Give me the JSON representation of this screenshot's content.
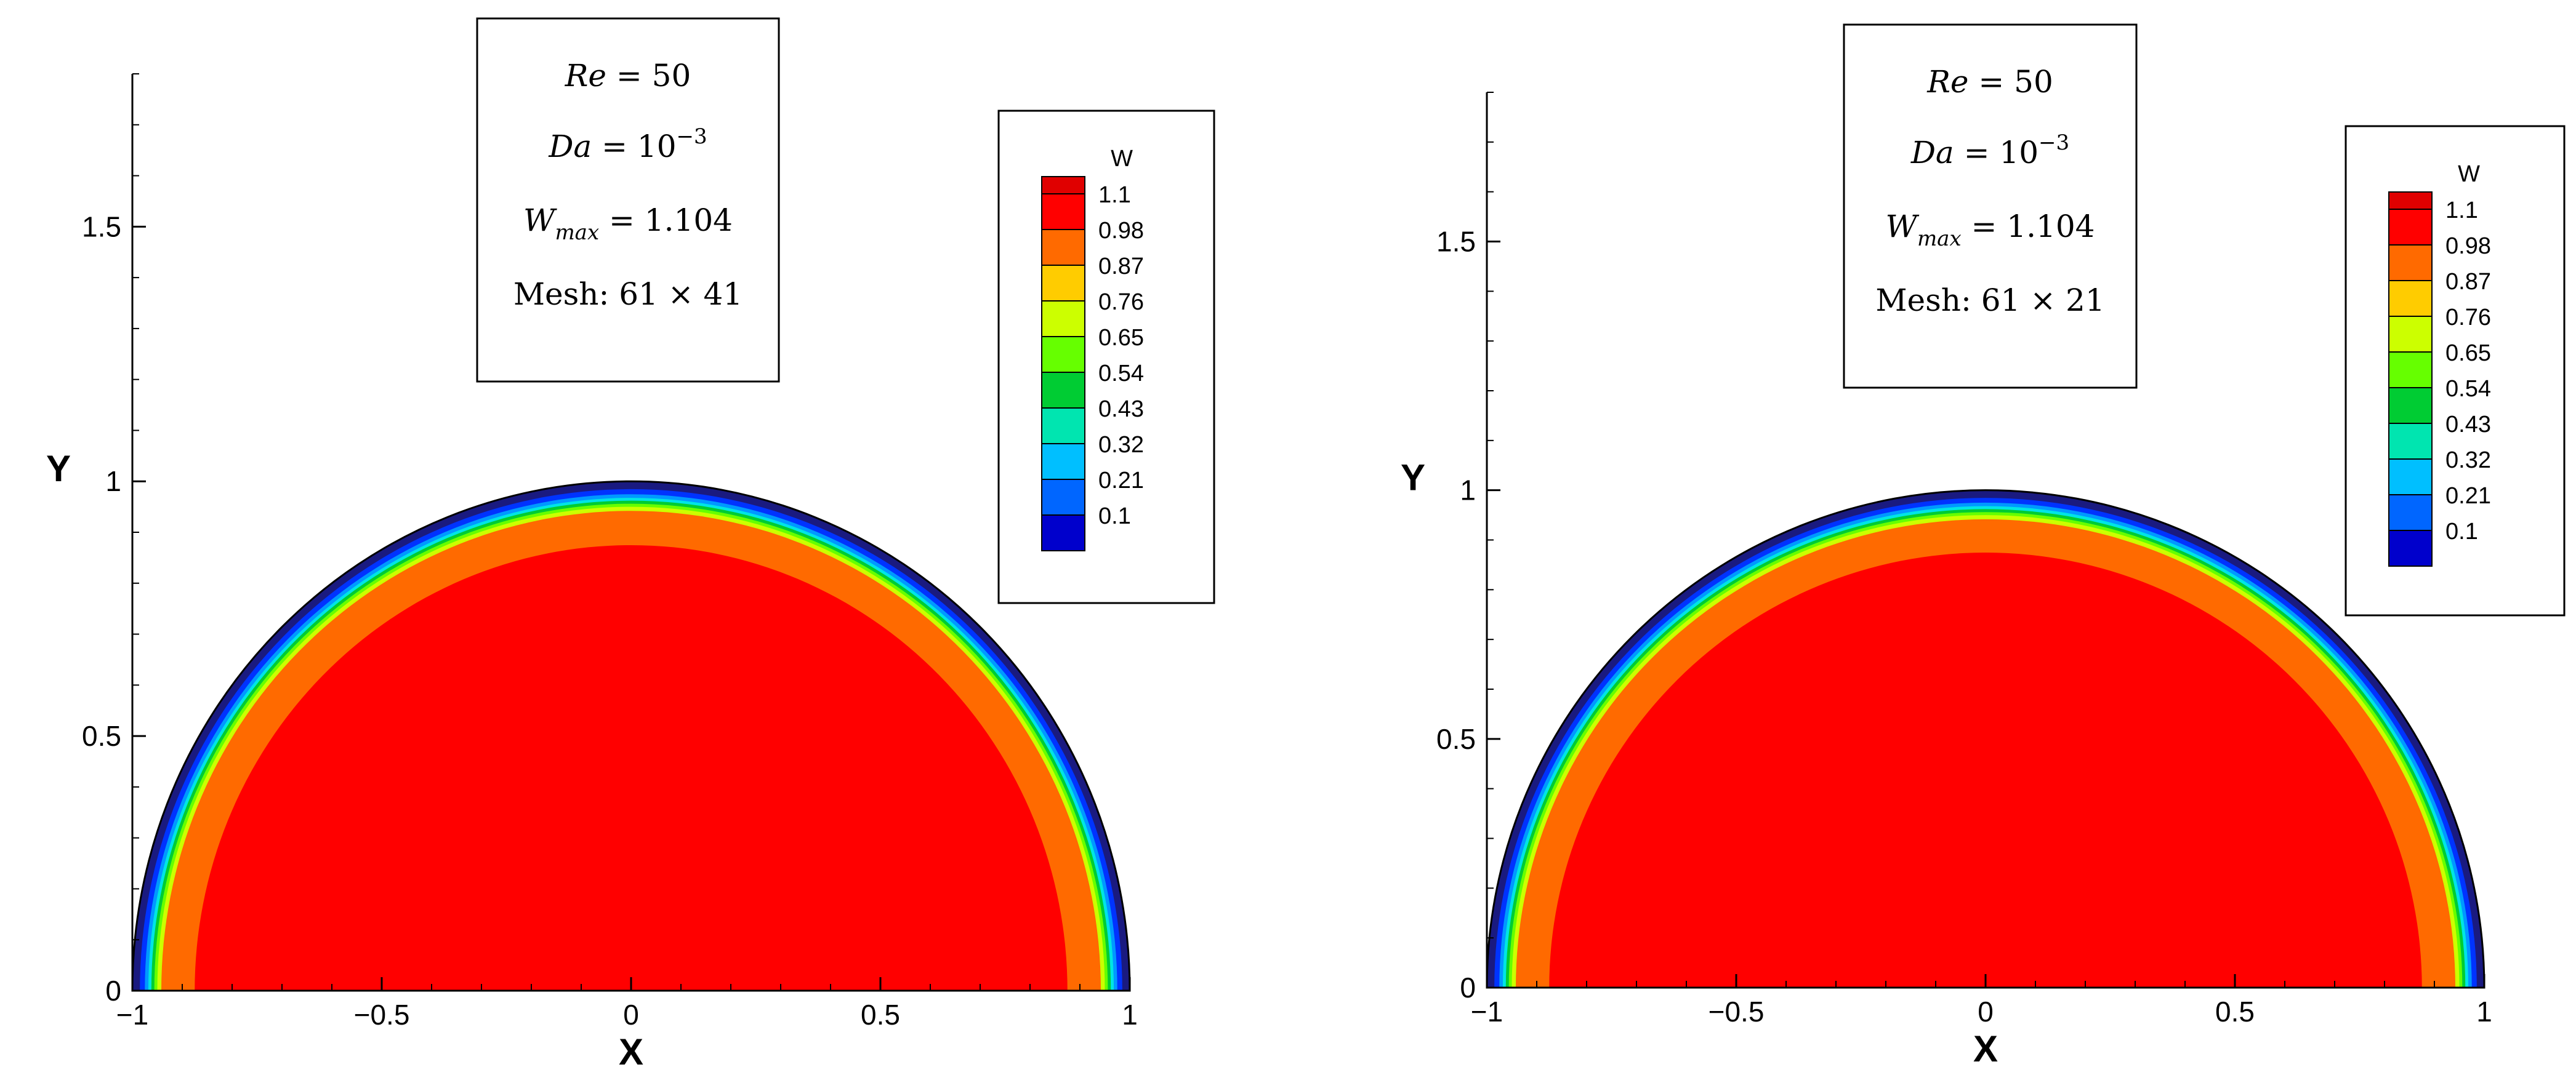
{
  "chart_data": [
    {
      "type": "heatmap",
      "xlabel": "X",
      "ylabel": "Y",
      "xlim": [
        -1,
        1
      ],
      "ylim": [
        0,
        1.8
      ],
      "x_ticks": [
        "-1",
        "-0.5",
        "0",
        "0.5",
        "1"
      ],
      "y_ticks": [
        "0",
        "0.5",
        "1",
        "1.5"
      ],
      "legend": {
        "title": "W",
        "levels": [
          "1.1",
          "0.98",
          "0.87",
          "0.76",
          "0.65",
          "0.54",
          "0.43",
          "0.32",
          "0.21",
          "0.1"
        ],
        "placement": "top-right"
      },
      "info": {
        "re": "= 50",
        "da": "= 10",
        "da_exp": "−3",
        "wmax": "= 1.104",
        "mesh": "Mesh: 61 × 41"
      },
      "contour_radii": [
        1.0,
        0.985,
        0.975,
        0.968,
        0.962,
        0.956,
        0.95,
        0.942,
        0.875
      ],
      "contour_colors": [
        "#1a1a80",
        "#0033ff",
        "#0099ff",
        "#00e5e5",
        "#00cc33",
        "#66ff00",
        "#ccff00",
        "#ff6a00",
        "#ff0000"
      ]
    },
    {
      "type": "heatmap",
      "xlabel": "X",
      "ylabel": "Y",
      "xlim": [
        -1,
        1
      ],
      "ylim": [
        0,
        1.8
      ],
      "x_ticks": [
        "-1",
        "-0.5",
        "0",
        "0.5",
        "1"
      ],
      "y_ticks": [
        "0",
        "0.5",
        "1",
        "1.5"
      ],
      "legend": {
        "title": "W",
        "levels": [
          "1.1",
          "0.98",
          "0.87",
          "0.76",
          "0.65",
          "0.54",
          "0.43",
          "0.32",
          "0.21",
          "0.1"
        ],
        "placement": "top-right"
      },
      "info": {
        "re": "= 50",
        "da": "= 10",
        "da_exp": "−3",
        "wmax": "= 1.104",
        "mesh": "Mesh: 61 × 21"
      },
      "contour_radii": [
        1.0,
        0.985,
        0.975,
        0.968,
        0.962,
        0.956,
        0.95,
        0.942,
        0.875
      ],
      "contour_colors": [
        "#1a1a80",
        "#0033ff",
        "#0099ff",
        "#00e5e5",
        "#00cc33",
        "#66ff00",
        "#ccff00",
        "#ff6a00",
        "#ff0000"
      ]
    }
  ],
  "legend_colors": [
    "#ff0000",
    "#ff6a00",
    "#ffcc00",
    "#ccff00",
    "#66ff00",
    "#00cc33",
    "#00e5b0",
    "#00bfff",
    "#0066ff",
    "#0000cc"
  ],
  "legend_top_color": "#e00000"
}
